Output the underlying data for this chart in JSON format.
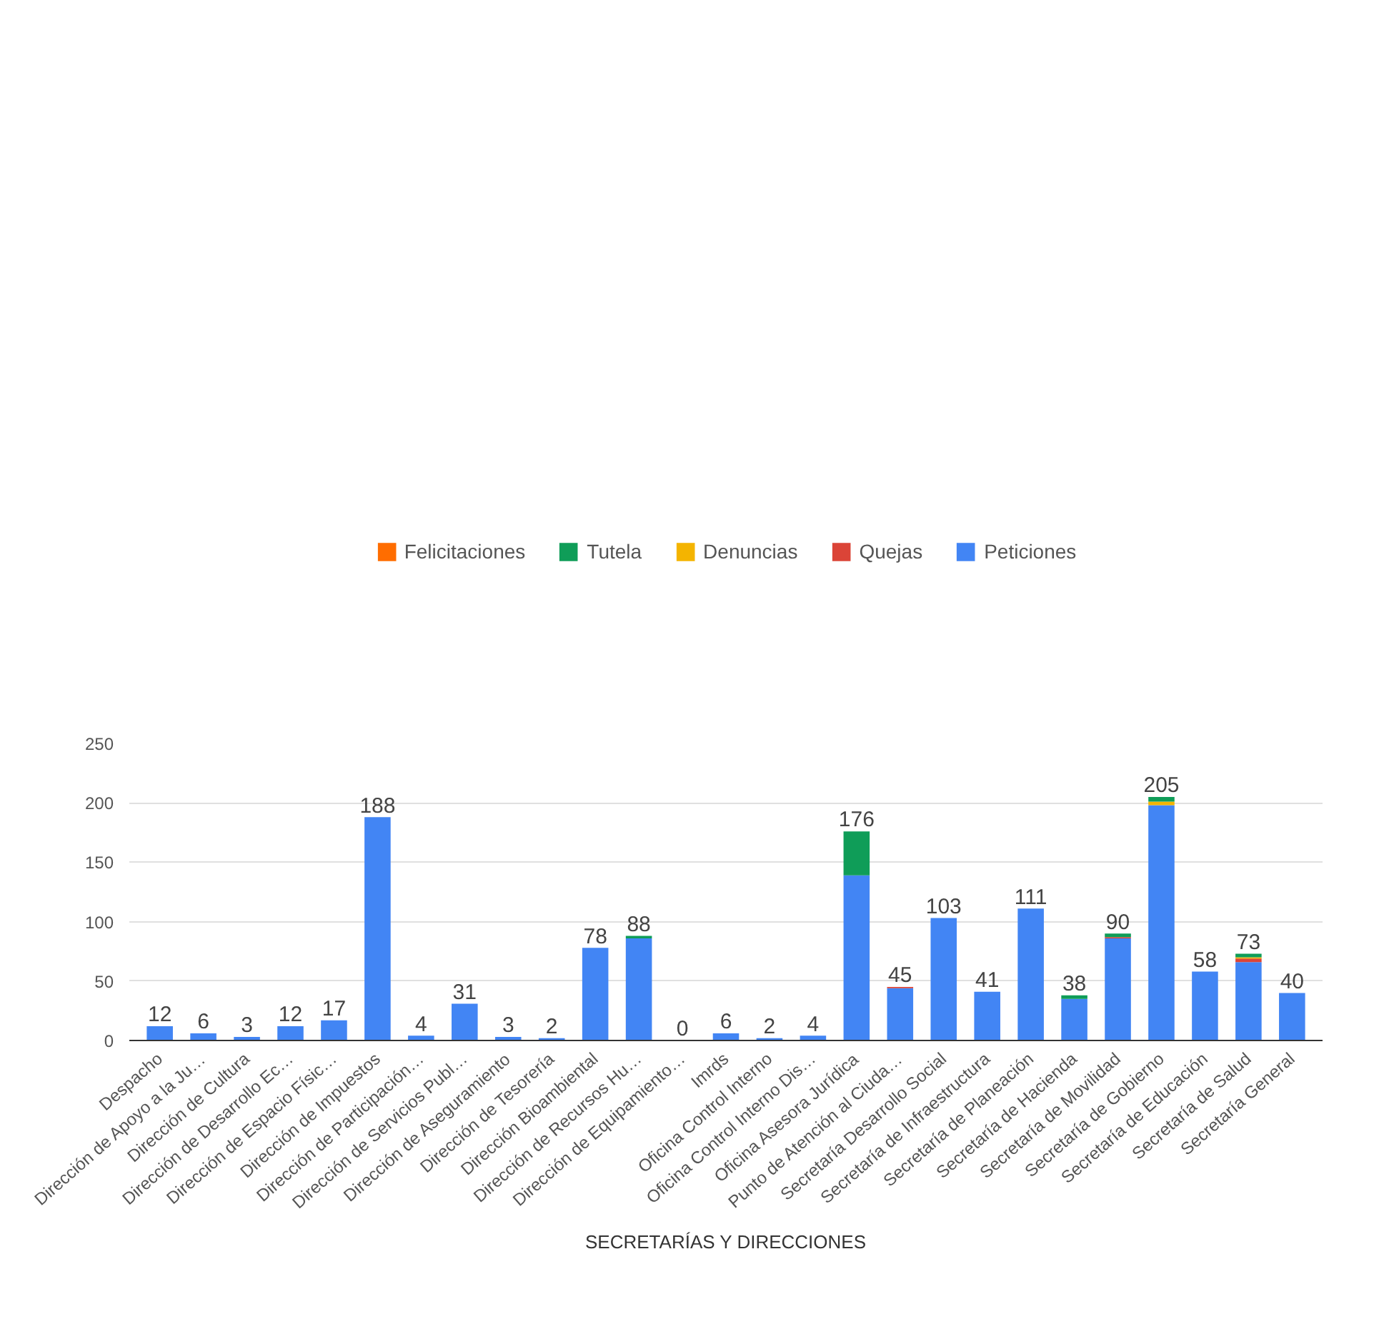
{
  "chart_data": {
    "type": "bar",
    "stacked": true,
    "xlabel": "SECRETARÍAS Y DIRECCIONES",
    "categories": [
      "Despacho",
      "Dirección de Apoyo a la Ju…",
      "Dirección de Cultura",
      "Dirección de Desarrollo Ec…",
      "Dirección de Espacio Físic…",
      "Dirección de Impuestos",
      "Dirección de Participación…",
      "Dirección de Servicios Publ…",
      "Dirección de Aseguramiento",
      "Dirección de Tesorería",
      "Dirección Bioambiental",
      "Dirección de Recursos Hu…",
      "Dirección de Equipamiento…",
      "Imrds",
      "Oficina Control Interno",
      "Oficina Control Interno Dis…",
      "Oficina Asesora Jurídica",
      "Punto de Atención al Ciuda…",
      "Secretaría Desarrollo Social",
      "Secretaría de Infraestructura",
      "Secretaría de Planeación",
      "Secretaría de Hacienda",
      "Secretaría de Movilidad",
      "Secretaría de Gobierno",
      "Secretaría de Educación",
      "Secretaría de Salud",
      "Secretaría General"
    ],
    "series": [
      {
        "name": "Peticiones",
        "color": "#4285f4",
        "values": [
          12,
          6,
          3,
          12,
          17,
          188,
          4,
          31,
          3,
          2,
          78,
          86,
          0,
          6,
          2,
          4,
          139,
          44,
          103,
          41,
          111,
          35,
          86,
          198,
          58,
          66,
          40
        ]
      },
      {
        "name": "Quejas",
        "color": "#db4437",
        "values": [
          0,
          0,
          0,
          0,
          0,
          0,
          0,
          0,
          0,
          0,
          0,
          0,
          0,
          0,
          0,
          0,
          0,
          1,
          0,
          0,
          0,
          0,
          1,
          0,
          0,
          3,
          0
        ]
      },
      {
        "name": "Denuncias",
        "color": "#f4b400",
        "values": [
          0,
          0,
          0,
          0,
          0,
          0,
          0,
          0,
          0,
          0,
          0,
          0,
          0,
          0,
          0,
          0,
          0,
          0,
          0,
          0,
          0,
          0,
          0,
          3,
          0,
          1,
          0
        ]
      },
      {
        "name": "Tutela",
        "color": "#0f9d58",
        "values": [
          0,
          0,
          0,
          0,
          0,
          0,
          0,
          0,
          0,
          0,
          0,
          2,
          0,
          0,
          0,
          0,
          37,
          0,
          0,
          0,
          0,
          3,
          3,
          4,
          0,
          3,
          0
        ]
      },
      {
        "name": "Felicitaciones",
        "color": "#ff6d00",
        "values": [
          0,
          0,
          0,
          0,
          0,
          0,
          0,
          0,
          0,
          0,
          0,
          0,
          0,
          0,
          0,
          0,
          0,
          0,
          0,
          0,
          0,
          0,
          0,
          0,
          0,
          0,
          0
        ]
      }
    ],
    "totals": [
      "12",
      "6",
      "3",
      "12",
      "17",
      "188",
      "4",
      "31",
      "3",
      "2",
      "78",
      "88",
      "0",
      "6",
      "2",
      "4",
      "176",
      "45",
      "103",
      "41",
      "111",
      "38",
      "90",
      "205",
      "58",
      "73",
      "40"
    ],
    "ylim": [
      0,
      250
    ],
    "yticks": [
      0,
      50,
      100,
      150,
      200,
      250
    ],
    "grid": "y",
    "legend": "top"
  }
}
